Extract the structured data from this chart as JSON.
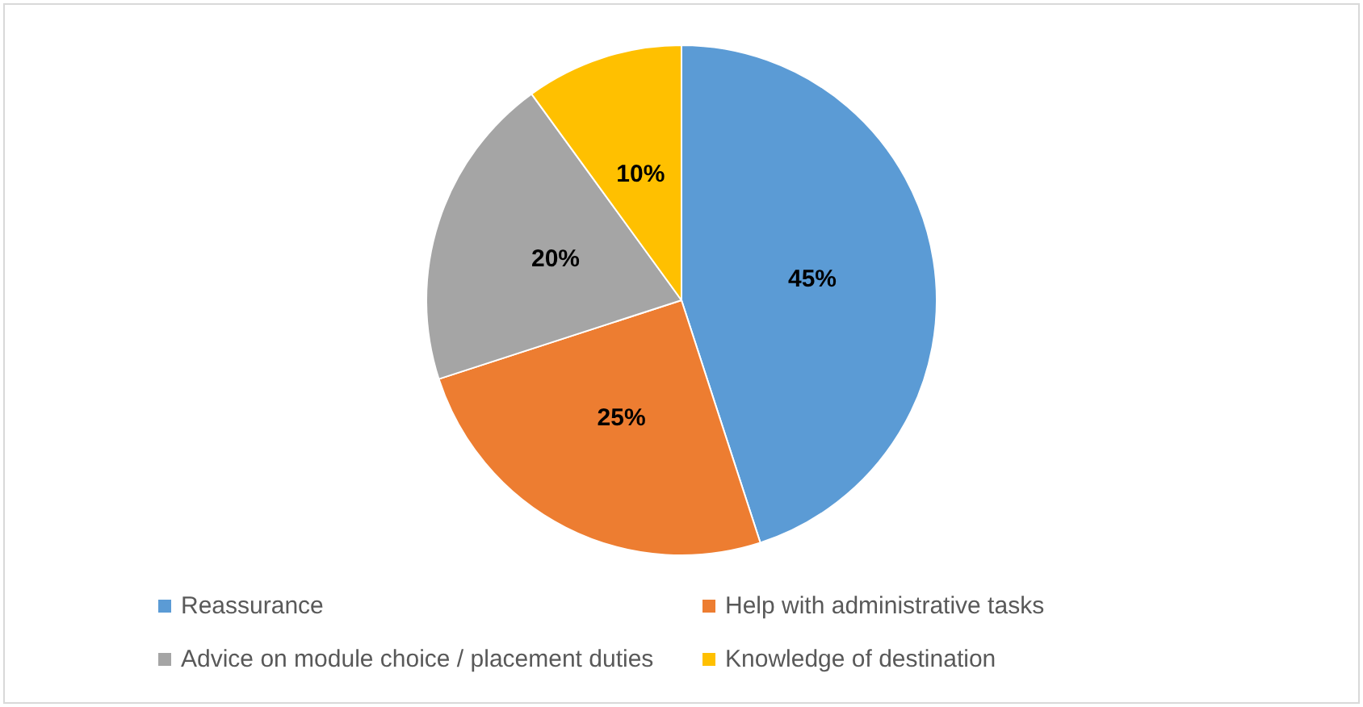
{
  "chart_data": {
    "type": "pie",
    "categories": [
      "Reassurance",
      "Help with administrative tasks",
      "Advice on module choice / placement duties",
      "Knowledge of destination"
    ],
    "values": [
      45,
      25,
      20,
      10
    ],
    "colors": [
      "#5b9bd5",
      "#ed7d31",
      "#a5a5a5",
      "#ffc000"
    ],
    "value_labels": [
      "45%",
      "25%",
      "20%",
      "10%"
    ],
    "legend": "bottom"
  }
}
